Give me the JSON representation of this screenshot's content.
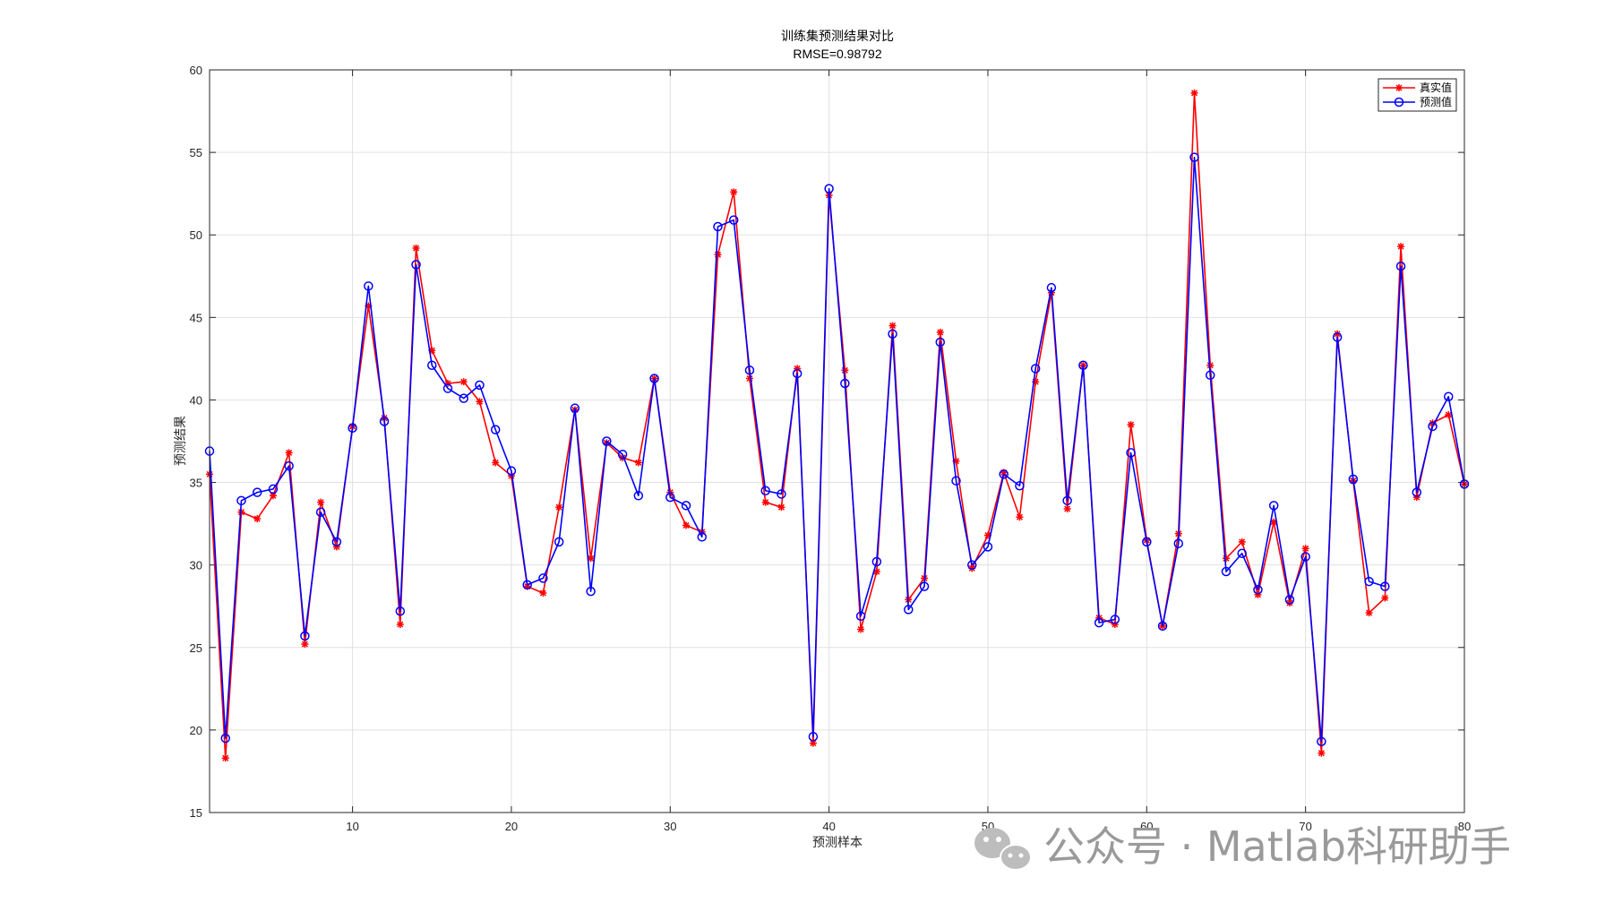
{
  "chart_data": {
    "type": "line",
    "title": "训练集预测结果对比",
    "subtitle": "RMSE=0.98792",
    "xlabel": "预测样本",
    "ylabel": "预测结果",
    "xlim": [
      1,
      80
    ],
    "ylim": [
      15,
      60
    ],
    "xticks": [
      10,
      20,
      30,
      40,
      50,
      60,
      70,
      80
    ],
    "yticks": [
      15,
      20,
      25,
      30,
      35,
      40,
      45,
      50,
      55,
      60
    ],
    "grid": true,
    "legend_position": "top-right",
    "series": [
      {
        "name": "真实值",
        "color": "#ff0000",
        "marker": "asterisk",
        "values": [
          35.5,
          18.3,
          33.2,
          32.8,
          34.2,
          36.8,
          25.2,
          33.8,
          31.1,
          38.4,
          45.7,
          38.9,
          26.4,
          49.2,
          43.0,
          41.0,
          41.1,
          39.9,
          36.2,
          35.4,
          28.7,
          28.3,
          33.5,
          39.4,
          30.4,
          37.4,
          36.5,
          36.2,
          41.3,
          34.4,
          32.4,
          32.0,
          48.8,
          52.6,
          41.3,
          33.8,
          33.5,
          41.9,
          19.2,
          52.4,
          41.8,
          26.1,
          29.6,
          44.5,
          27.9,
          29.2,
          44.1,
          36.3,
          29.8,
          31.8,
          35.6,
          32.9,
          41.1,
          46.5,
          33.4,
          42.1,
          26.8,
          26.4,
          38.5,
          31.5,
          26.3,
          31.9,
          58.6,
          42.1,
          30.4,
          31.4,
          28.2,
          32.6,
          27.7,
          31.0,
          18.6,
          44.0,
          35.1,
          27.1,
          28.0,
          49.3,
          34.1,
          38.6,
          39.1,
          34.9
        ]
      },
      {
        "name": "预测值",
        "color": "#0000ff",
        "marker": "circle",
        "values": [
          36.9,
          19.5,
          33.9,
          34.4,
          34.6,
          36.0,
          25.7,
          33.2,
          31.4,
          38.3,
          46.9,
          38.7,
          27.2,
          48.2,
          42.1,
          40.7,
          40.1,
          40.9,
          38.2,
          35.7,
          28.8,
          29.2,
          31.4,
          39.5,
          28.4,
          37.5,
          36.7,
          34.2,
          41.3,
          34.1,
          33.6,
          31.7,
          50.5,
          50.9,
          41.8,
          34.5,
          34.3,
          41.6,
          19.6,
          52.8,
          41.0,
          26.9,
          30.2,
          44.0,
          27.3,
          28.7,
          43.5,
          35.1,
          30.0,
          31.1,
          35.5,
          34.8,
          41.9,
          46.8,
          33.9,
          42.1,
          26.5,
          26.7,
          36.8,
          31.4,
          26.3,
          31.3,
          54.7,
          41.5,
          29.6,
          30.7,
          28.5,
          33.6,
          27.9,
          30.5,
          19.3,
          43.8,
          35.2,
          29.0,
          28.7,
          48.1,
          34.4,
          38.4,
          40.2,
          34.9
        ]
      }
    ]
  },
  "legend": {
    "true_label": "真实值",
    "pred_label": "预测值"
  },
  "watermark": {
    "text": "公众号 · Matlab科研助手",
    "icon": "wechat-icon"
  }
}
